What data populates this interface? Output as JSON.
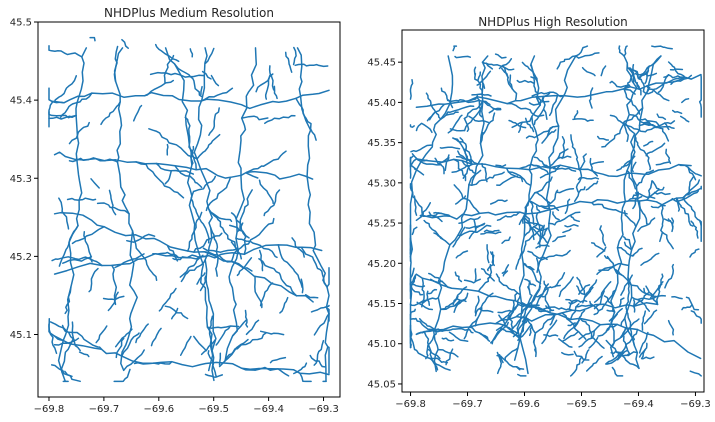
{
  "chart_data": [
    {
      "type": "line",
      "title": "NHDPlus Medium Resolution",
      "xlabel": "",
      "ylabel": "",
      "xlim": [
        -69.82,
        -69.27
      ],
      "ylim": [
        45.02,
        45.5
      ],
      "xticks": [
        -69.8,
        -69.7,
        -69.6,
        -69.5,
        -69.4,
        -69.3
      ],
      "xtick_labels": [
        "−69.8",
        "−69.7",
        "−69.6",
        "−69.5",
        "−69.4",
        "−69.3"
      ],
      "yticks": [
        45.1,
        45.2,
        45.3,
        45.4,
        45.5
      ],
      "ytick_labels": [
        "45.1",
        "45.2",
        "45.3",
        "45.4",
        "45.5"
      ],
      "series_color": "#1f77b4",
      "grid": false,
      "flowline_density": "medium",
      "extent": {
        "x": [
          -69.8,
          -69.29
        ],
        "y": [
          45.04,
          45.48
        ]
      }
    },
    {
      "type": "line",
      "title": "NHDPlus High Resolution",
      "xlabel": "",
      "ylabel": "",
      "xlim": [
        -69.815,
        -69.285
      ],
      "ylim": [
        45.04,
        45.49
      ],
      "xticks": [
        -69.8,
        -69.7,
        -69.6,
        -69.5,
        -69.4,
        -69.3
      ],
      "xtick_labels": [
        "−69.8",
        "−69.7",
        "−69.6",
        "−69.5",
        "−69.4",
        "−69.3"
      ],
      "yticks": [
        45.05,
        45.1,
        45.15,
        45.2,
        45.25,
        45.3,
        45.35,
        45.4,
        45.45
      ],
      "ytick_labels": [
        "45.05",
        "45.10",
        "45.15",
        "45.20",
        "45.25",
        "45.30",
        "45.35",
        "45.40",
        "45.45"
      ],
      "series_color": "#1f77b4",
      "grid": false,
      "flowline_density": "high",
      "extent": {
        "x": [
          -69.8,
          -69.29
        ],
        "y": [
          45.06,
          45.47
        ]
      }
    }
  ]
}
